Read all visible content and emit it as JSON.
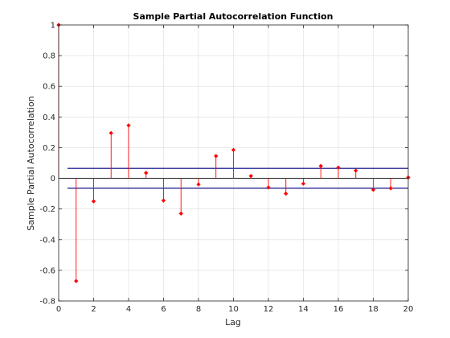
{
  "chart_data": {
    "type": "stem",
    "title": "Sample Partial Autocorrelation Function",
    "xlabel": "Lag",
    "ylabel": "Sample Partial Autocorrelation",
    "xlim": [
      0,
      20
    ],
    "ylim": [
      -0.8,
      1
    ],
    "xticks": [
      0,
      2,
      4,
      6,
      8,
      10,
      12,
      14,
      16,
      18,
      20
    ],
    "yticks": [
      -0.8,
      -0.6,
      -0.4,
      -0.2,
      0,
      0.2,
      0.4,
      0.6,
      0.8,
      1
    ],
    "xtick_labels": [
      "0",
      "2",
      "4",
      "6",
      "8",
      "10",
      "12",
      "14",
      "16",
      "18",
      "20"
    ],
    "ytick_labels": [
      "-0.8",
      "-0.6",
      "-0.4",
      "-0.2",
      "0",
      "0.2",
      "0.4",
      "0.6",
      "0.8",
      "1"
    ],
    "grid": true,
    "series": [
      {
        "x": [
          0,
          1,
          2,
          3,
          4,
          5,
          6,
          7,
          8,
          9,
          10,
          11,
          12,
          13,
          14,
          15,
          16,
          17,
          18,
          19,
          20
        ],
        "values": [
          1.0,
          -0.67,
          -0.15,
          0.295,
          0.345,
          0.035,
          -0.145,
          -0.23,
          -0.04,
          0.145,
          0.185,
          0.015,
          -0.06,
          -0.1,
          -0.035,
          0.08,
          0.07,
          0.05,
          -0.075,
          -0.065,
          0.005
        ],
        "color": "#ff0000"
      }
    ],
    "confidence_bounds": [
      0.065,
      -0.065
    ],
    "bound_color": "#000080"
  }
}
